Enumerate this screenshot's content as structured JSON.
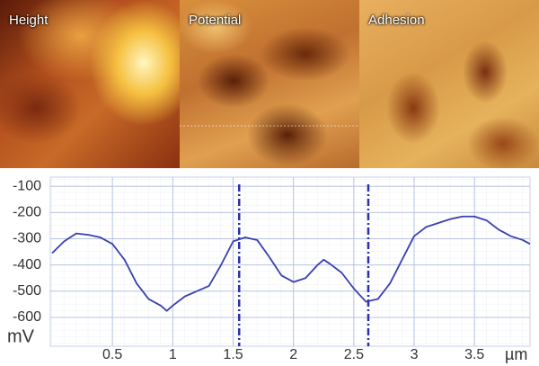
{
  "panels": [
    "Height",
    "Potential",
    "Adhesion"
  ],
  "chart_data": {
    "type": "line",
    "y_label": "mV",
    "x_label": "µm",
    "x": [
      0,
      0.1,
      0.2,
      0.3,
      0.4,
      0.5,
      0.6,
      0.7,
      0.8,
      0.9,
      0.95,
      1.0,
      1.1,
      1.2,
      1.3,
      1.4,
      1.5,
      1.6,
      1.7,
      1.8,
      1.9,
      2.0,
      2.1,
      2.2,
      2.25,
      2.3,
      2.4,
      2.5,
      2.6,
      2.7,
      2.8,
      2.9,
      3.0,
      3.1,
      3.2,
      3.3,
      3.4,
      3.5,
      3.6,
      3.7,
      3.8,
      3.9,
      3.96
    ],
    "series": [
      {
        "color": "#3a3fb0",
        "values": [
          -355,
          -310,
          -280,
          -285,
          -295,
          -320,
          -380,
          -470,
          -530,
          -555,
          -575,
          -555,
          -520,
          -500,
          -480,
          -400,
          -310,
          -295,
          -305,
          -370,
          -440,
          -465,
          -450,
          -400,
          -380,
          -395,
          -430,
          -490,
          -540,
          -530,
          -470,
          -380,
          -290,
          -255,
          -240,
          -225,
          -215,
          -215,
          -230,
          -265,
          -290,
          -305,
          -320
        ]
      }
    ],
    "markers": [
      1.55,
      2.62
    ],
    "xlim": [
      0,
      3.96
    ],
    "ylim": [
      -710,
      -65
    ],
    "xticks": [
      0.5,
      1,
      1.5,
      2,
      2.5,
      3,
      3.5
    ],
    "yticks": [
      -100,
      -200,
      -300,
      -400,
      -500,
      -600
    ],
    "grid": true
  }
}
